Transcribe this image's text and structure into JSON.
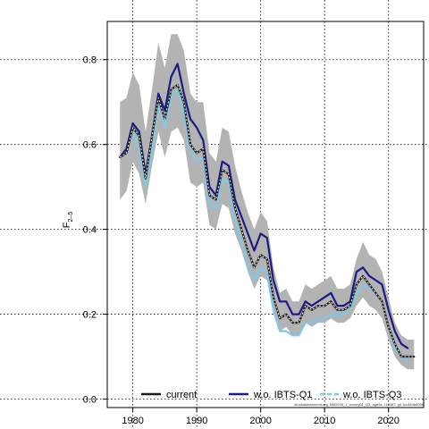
{
  "chart_data": {
    "type": "line",
    "title": "",
    "xlabel": "",
    "ylabel": "F",
    "ylabel_sub": "2–5",
    "xlim": [
      1976,
      2025.5
    ],
    "ylim": [
      -0.02,
      0.89
    ],
    "x_ticks": [
      1980,
      1990,
      2000,
      2010,
      2020
    ],
    "y_ticks": [
      0.0,
      0.2,
      0.4,
      0.6,
      0.8
    ],
    "x_tick_labels": [
      "1980",
      "1990",
      "2000",
      "2010",
      "2020"
    ],
    "y_tick_labels": [
      "0.0",
      "0.2",
      "0.4",
      "0.6",
      "0.8"
    ],
    "grid": true,
    "legend_position": "bottom",
    "x": [
      1978,
      1979,
      1980,
      1981,
      1982,
      1983,
      1984,
      1985,
      1986,
      1987,
      1988,
      1989,
      1990,
      1991,
      1992,
      1993,
      1994,
      1995,
      1996,
      1997,
      1998,
      1999,
      2000,
      2001,
      2002,
      2003,
      2004,
      2005,
      2006,
      2007,
      2008,
      2009,
      2010,
      2011,
      2012,
      2013,
      2014,
      2015,
      2016,
      2017,
      2018,
      2019,
      2020,
      2021,
      2022,
      2023,
      2024
    ],
    "series": [
      {
        "name": "current",
        "color": "#1a1a1a",
        "dash": "solid",
        "values": [
          0.57,
          0.58,
          0.64,
          0.62,
          0.52,
          0.62,
          0.71,
          0.66,
          0.73,
          0.74,
          0.7,
          0.6,
          0.58,
          0.59,
          0.48,
          0.47,
          0.54,
          0.53,
          0.45,
          0.4,
          0.35,
          0.31,
          0.34,
          0.33,
          0.24,
          0.19,
          0.2,
          0.18,
          0.18,
          0.22,
          0.21,
          0.22,
          0.22,
          0.23,
          0.21,
          0.21,
          0.22,
          0.27,
          0.29,
          0.27,
          0.25,
          0.23,
          0.17,
          0.13,
          0.1,
          0.1,
          0.1
        ]
      },
      {
        "name": "w.o. IBTS-Q1",
        "color": "#1c1a86",
        "dash": "solid",
        "values": [
          0.57,
          0.59,
          0.65,
          0.63,
          0.53,
          0.62,
          0.72,
          0.68,
          0.76,
          0.79,
          0.72,
          0.66,
          0.64,
          0.61,
          0.5,
          0.48,
          0.56,
          0.55,
          0.47,
          0.43,
          0.39,
          0.35,
          0.39,
          0.38,
          0.28,
          0.23,
          0.23,
          0.2,
          0.2,
          0.23,
          0.22,
          0.23,
          0.24,
          0.25,
          0.22,
          0.22,
          0.23,
          0.3,
          0.31,
          0.29,
          0.28,
          0.27,
          0.21,
          0.16,
          0.13,
          0.12,
          null
        ]
      },
      {
        "name": "w.o. IBTS-Q3",
        "color": "#7ec8e8",
        "dash": "dashed",
        "values": [
          0.57,
          0.58,
          0.63,
          0.59,
          0.5,
          0.59,
          0.7,
          0.64,
          0.71,
          0.73,
          0.67,
          0.58,
          0.56,
          0.57,
          0.46,
          0.45,
          0.52,
          0.51,
          0.42,
          0.37,
          0.31,
          0.28,
          0.31,
          0.3,
          0.21,
          0.16,
          0.16,
          0.15,
          0.15,
          0.18,
          0.18,
          0.19,
          0.19,
          0.2,
          0.2,
          0.2,
          0.21,
          0.25,
          0.27,
          0.26,
          0.25,
          0.23,
          0.17,
          0.12,
          0.1,
          0.09,
          null
        ]
      }
    ],
    "band": {
      "color": "#b3b3b3",
      "lower": [
        0.47,
        0.49,
        0.56,
        0.53,
        0.46,
        0.55,
        0.63,
        0.57,
        0.63,
        0.64,
        0.61,
        0.51,
        0.5,
        0.51,
        0.41,
        0.4,
        0.46,
        0.45,
        0.39,
        0.35,
        0.3,
        0.26,
        0.29,
        0.28,
        0.2,
        0.16,
        0.17,
        0.15,
        0.15,
        0.18,
        0.17,
        0.18,
        0.18,
        0.19,
        0.18,
        0.18,
        0.19,
        0.22,
        0.24,
        0.22,
        0.21,
        0.19,
        0.14,
        0.1,
        0.08,
        0.07,
        0.07
      ],
      "upper": [
        0.7,
        0.71,
        0.77,
        0.74,
        0.63,
        0.73,
        0.84,
        0.78,
        0.86,
        0.86,
        0.82,
        0.72,
        0.7,
        0.7,
        0.58,
        0.56,
        0.64,
        0.63,
        0.55,
        0.49,
        0.44,
        0.4,
        0.44,
        0.42,
        0.31,
        0.25,
        0.26,
        0.23,
        0.23,
        0.27,
        0.26,
        0.27,
        0.28,
        0.29,
        0.26,
        0.26,
        0.27,
        0.33,
        0.37,
        0.34,
        0.33,
        0.3,
        0.24,
        0.18,
        0.15,
        0.14,
        0.14
      ]
    }
  },
  "legend": {
    "items": [
      {
        "label": "current"
      },
      {
        "label": "w.o. IBTS-Q1"
      },
      {
        "label": "w.o. IBTS-Q3"
      }
    ]
  },
  "footnote": "stockassessment.org, BM2026_1_survey01_Q3_age5e, r19467, git 1cc464b8098"
}
